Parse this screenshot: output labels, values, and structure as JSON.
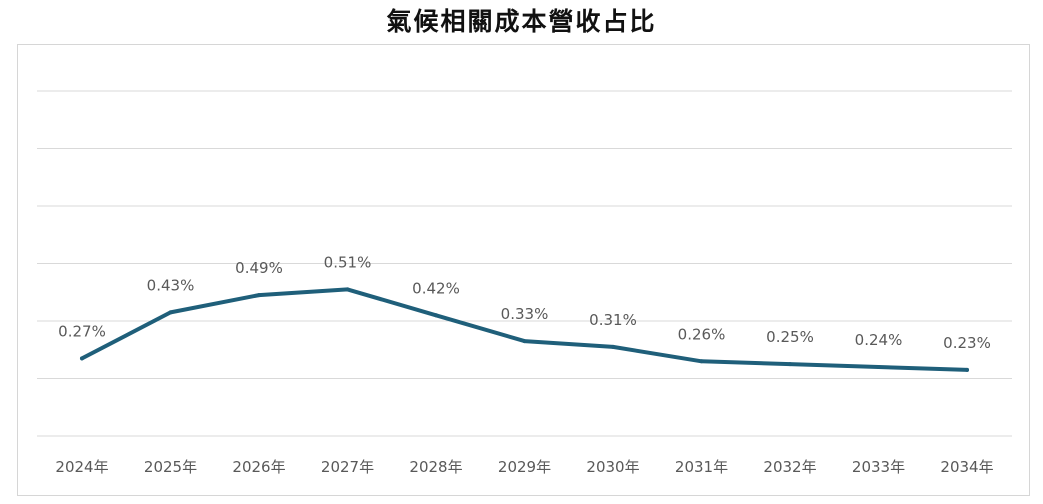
{
  "chart_data": {
    "type": "line",
    "title": "氣候相關成本營收占比",
    "categories": [
      "2024年",
      "2025年",
      "2026年",
      "2027年",
      "2028年",
      "2029年",
      "2030年",
      "2031年",
      "2032年",
      "2033年",
      "2034年"
    ],
    "series": [
      {
        "values": [
          0.27,
          0.43,
          0.49,
          0.51,
          0.42,
          0.33,
          0.31,
          0.26,
          0.25,
          0.24,
          0.23
        ],
        "labels": [
          "0.27%",
          "0.43%",
          "0.49%",
          "0.51%",
          "0.42%",
          "0.33%",
          "0.31%",
          "0.26%",
          "0.25%",
          "0.24%",
          "0.23%"
        ],
        "color": "#1f5f7a"
      }
    ],
    "ylim": [
      0,
      1.2
    ],
    "grid": true,
    "legend": "none",
    "gridline_color": "#d9d9d9"
  }
}
